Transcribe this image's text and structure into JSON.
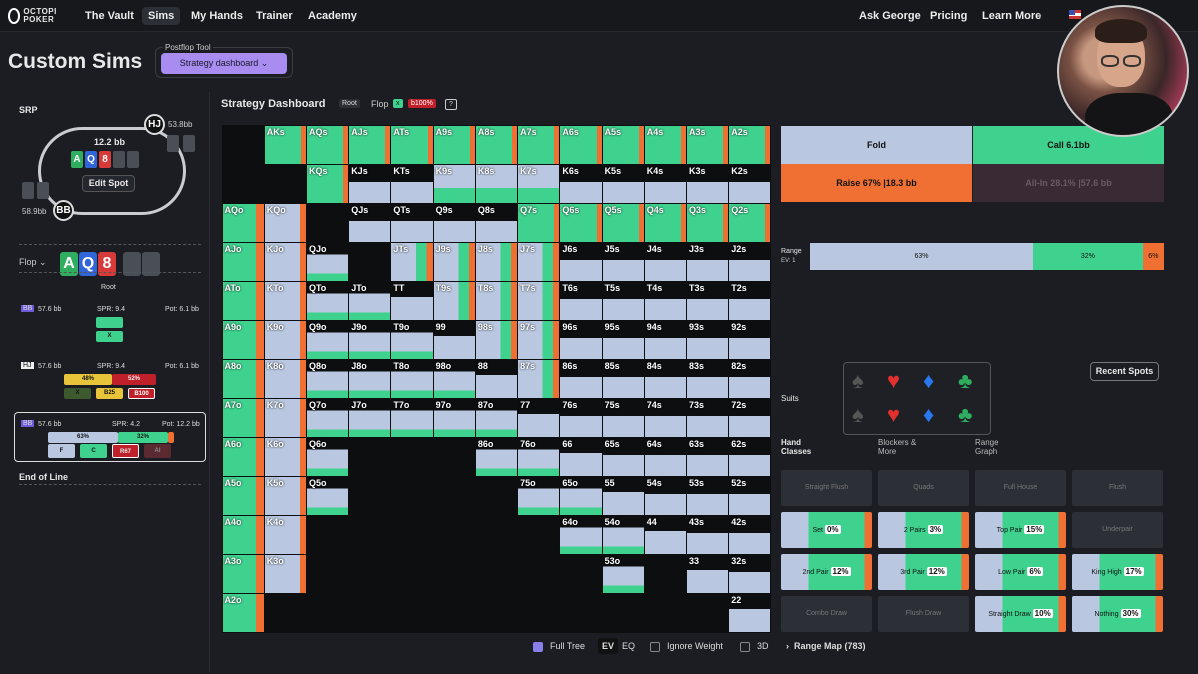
{
  "nav": {
    "items": [
      "The Vault",
      "Sims",
      "My Hands",
      "Trainer",
      "Academy"
    ],
    "right": [
      "Ask George",
      "Pricing",
      "Learn More"
    ],
    "logo": "OCTOPI POKER"
  },
  "page": {
    "title": "Custom Sims",
    "tool_label": "Postflop Tool",
    "tool_value": "Strategy dashboard ⌄"
  },
  "left": {
    "srp": "SRP",
    "pot": "12.2 bb",
    "hj": "HJ",
    "hj_stack": "53.8bb",
    "bb": "BB",
    "bb_stack": "58.9bb",
    "edit": "Edit Spot",
    "flop": "Flop ⌄",
    "board": [
      "A",
      "Q",
      "8"
    ],
    "end": "End of Line",
    "root": "Root",
    "n1": {
      "pos": "BB",
      "stack": "57.6 bb",
      "spr": "SPR: 9.4",
      "pot": "Pot: 6.1 bb",
      "act": "X"
    },
    "n2": {
      "pos": "HJ",
      "stack": "57.6 bb",
      "spr": "SPR: 9.4",
      "pot": "Pot: 6.1 bb",
      "p1": "48%",
      "p2": "52%",
      "acts": [
        "X",
        "B25",
        "B100"
      ]
    },
    "n3": {
      "pos": "BB",
      "stack": "57.6 bb",
      "spr": "SPR: 4.2",
      "pot": "Pot: 12.2 bb",
      "p1": "63%",
      "p2": "32%",
      "acts": [
        "F",
        "C",
        "R67",
        "AI"
      ]
    }
  },
  "dash": {
    "title": "Strategy Dashboard",
    "root": "Root",
    "flop": "Flop",
    "x": "x",
    "b": "b100%",
    "help": "?"
  },
  "grid": {
    "rows": [
      [
        "",
        "AKs",
        "AQs",
        "AJs",
        "ATs",
        "A9s",
        "A8s",
        "A7s",
        "A6s",
        "A5s",
        "A4s",
        "A3s",
        "A2s"
      ],
      [
        "",
        "",
        "KQs",
        "KJs",
        "KTs",
        "K9s",
        "K8s",
        "K7s",
        "K6s",
        "K5s",
        "K4s",
        "K3s",
        "K2s"
      ],
      [
        "AQo",
        "KQo",
        "",
        "QJs",
        "QTs",
        "Q9s",
        "Q8s",
        "Q7s",
        "Q6s",
        "Q5s",
        "Q4s",
        "Q3s",
        "Q2s"
      ],
      [
        "AJo",
        "KJo",
        "QJo",
        "",
        "JTs",
        "J9s",
        "J8s",
        "J7s",
        "J6s",
        "J5s",
        "J4s",
        "J3s",
        "J2s"
      ],
      [
        "ATo",
        "KTo",
        "QTo",
        "JTo",
        "TT",
        "T9s",
        "T8s",
        "T7s",
        "T6s",
        "T5s",
        "T4s",
        "T3s",
        "T2s"
      ],
      [
        "A9o",
        "K9o",
        "Q9o",
        "J9o",
        "T9o",
        "99",
        "98s",
        "97s",
        "96s",
        "95s",
        "94s",
        "93s",
        "92s"
      ],
      [
        "A8o",
        "K8o",
        "Q8o",
        "J8o",
        "T8o",
        "98o",
        "88",
        "87s",
        "86s",
        "85s",
        "84s",
        "83s",
        "82s"
      ],
      [
        "A7o",
        "K7o",
        "Q7o",
        "J7o",
        "T7o",
        "97o",
        "87o",
        "77",
        "76s",
        "75s",
        "74s",
        "73s",
        "72s"
      ],
      [
        "A6o",
        "K6o",
        "Q6o",
        "",
        "",
        "",
        "86o",
        "76o",
        "66",
        "65s",
        "64s",
        "63s",
        "62s"
      ],
      [
        "A5o",
        "K5o",
        "Q5o",
        "",
        "",
        "",
        "",
        "75o",
        "65o",
        "55",
        "54s",
        "53s",
        "52s"
      ],
      [
        "A4o",
        "K4o",
        "",
        "",
        "",
        "",
        "",
        "",
        "64o",
        "54o",
        "44",
        "43s",
        "42s"
      ],
      [
        "A3o",
        "K3o",
        "",
        "",
        "",
        "",
        "",
        "",
        "",
        "53o",
        "",
        "33",
        "32s"
      ],
      [
        "A2o",
        "",
        "",
        "",
        "",
        "",
        "",
        "",
        "",
        "",
        "",
        "",
        "22"
      ]
    ]
  },
  "actions": {
    "fold": "Fold",
    "call": "Call  6.1bb",
    "raise": "Raise  67%  |18.3 bb",
    "allin": "All-In  28.1%  |57.6 bb"
  },
  "range": {
    "label": "Range",
    "ev": "EV: 1",
    "fold": "63%",
    "call": "32%",
    "raise": "6%"
  },
  "misc": {
    "recent": "Recent Spots",
    "suits": "Suits",
    "tabs": [
      "Hand Classes",
      "Blockers & More",
      "Range Graph"
    ]
  },
  "classes": [
    {
      "name": "Straight Flush",
      "pct": ""
    },
    {
      "name": "Quads",
      "pct": ""
    },
    {
      "name": "Full House",
      "pct": ""
    },
    {
      "name": "Flush",
      "pct": ""
    },
    {
      "name": "Set",
      "pct": "0%"
    },
    {
      "name": "2 Pairs",
      "pct": "3%"
    },
    {
      "name": "Top Pair",
      "pct": "15%"
    },
    {
      "name": "Underpair",
      "pct": ""
    },
    {
      "name": "2nd Pair",
      "pct": "12%"
    },
    {
      "name": "3rd Pair",
      "pct": "12%"
    },
    {
      "name": "Low Pair",
      "pct": "6%"
    },
    {
      "name": "King High",
      "pct": "17%"
    },
    {
      "name": "Combo Draw",
      "pct": ""
    },
    {
      "name": "Flush Draw",
      "pct": ""
    },
    {
      "name": "Straight Draw",
      "pct": "10%"
    },
    {
      "name": "Nothing",
      "pct": "30%"
    }
  ],
  "bottom": {
    "full_tree": "Full Tree",
    "ev": "EV",
    "eq": "EQ",
    "ignore": "Ignore Weight",
    "d3": "3D",
    "range_map": "Range Map (783)"
  },
  "colors": {
    "fold": "#b9c8e0",
    "call": "#3fd28f",
    "raise": "#f07033",
    "purple": "#a88cf0"
  }
}
